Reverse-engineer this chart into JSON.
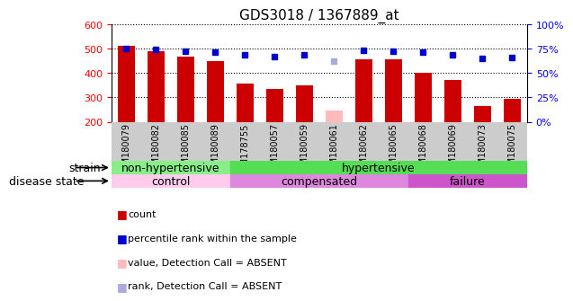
{
  "title": "GDS3018 / 1367889_at",
  "samples": [
    "GSM180079",
    "GSM180082",
    "GSM180085",
    "GSM180089",
    "GSM178755",
    "GSM180057",
    "GSM180059",
    "GSM180061",
    "GSM180062",
    "GSM180065",
    "GSM180068",
    "GSM180069",
    "GSM180073",
    "GSM180075"
  ],
  "bar_values": [
    510,
    490,
    465,
    447,
    355,
    333,
    350,
    245,
    457,
    455,
    400,
    370,
    265,
    295
  ],
  "bar_absent": [
    false,
    false,
    false,
    false,
    false,
    false,
    false,
    true,
    false,
    false,
    false,
    false,
    false,
    false
  ],
  "percentile_values": [
    75,
    74,
    72,
    71,
    68,
    67,
    68,
    62,
    73,
    72,
    71,
    68,
    65,
    66
  ],
  "percentile_absent": [
    false,
    false,
    false,
    false,
    false,
    false,
    false,
    true,
    false,
    false,
    false,
    false,
    false,
    false
  ],
  "ylim_left": [
    200,
    600
  ],
  "yticks_left": [
    200,
    300,
    400,
    500,
    600
  ],
  "ytick_labels_right": [
    "0%",
    "25%",
    "50%",
    "75%",
    "100%"
  ],
  "yticks_right_pct": [
    0,
    25,
    50,
    75,
    100
  ],
  "bar_color": "#cc0000",
  "bar_absent_color": "#ffbbbb",
  "dot_color": "#0000cc",
  "dot_absent_color": "#aaaadd",
  "strain_groups": [
    {
      "label": "non-hypertensive",
      "start": 0,
      "end": 4,
      "color": "#88ee88"
    },
    {
      "label": "hypertensive",
      "start": 4,
      "end": 14,
      "color": "#55dd55"
    }
  ],
  "disease_groups": [
    {
      "label": "control",
      "start": 0,
      "end": 4,
      "color": "#ffccee"
    },
    {
      "label": "compensated",
      "start": 4,
      "end": 10,
      "color": "#dd88dd"
    },
    {
      "label": "failure",
      "start": 10,
      "end": 14,
      "color": "#cc55cc"
    }
  ],
  "strain_label": "strain",
  "disease_label": "disease state",
  "legend_items": [
    {
      "label": "count",
      "color": "#cc0000"
    },
    {
      "label": "percentile rank within the sample",
      "color": "#0000cc"
    },
    {
      "label": "value, Detection Call = ABSENT",
      "color": "#ffbbbb"
    },
    {
      "label": "rank, Detection Call = ABSENT",
      "color": "#aaaadd"
    }
  ],
  "xticklabel_bg": "#cccccc",
  "title_fontsize": 11,
  "tick_fontsize": 8,
  "strip_fontsize": 9
}
